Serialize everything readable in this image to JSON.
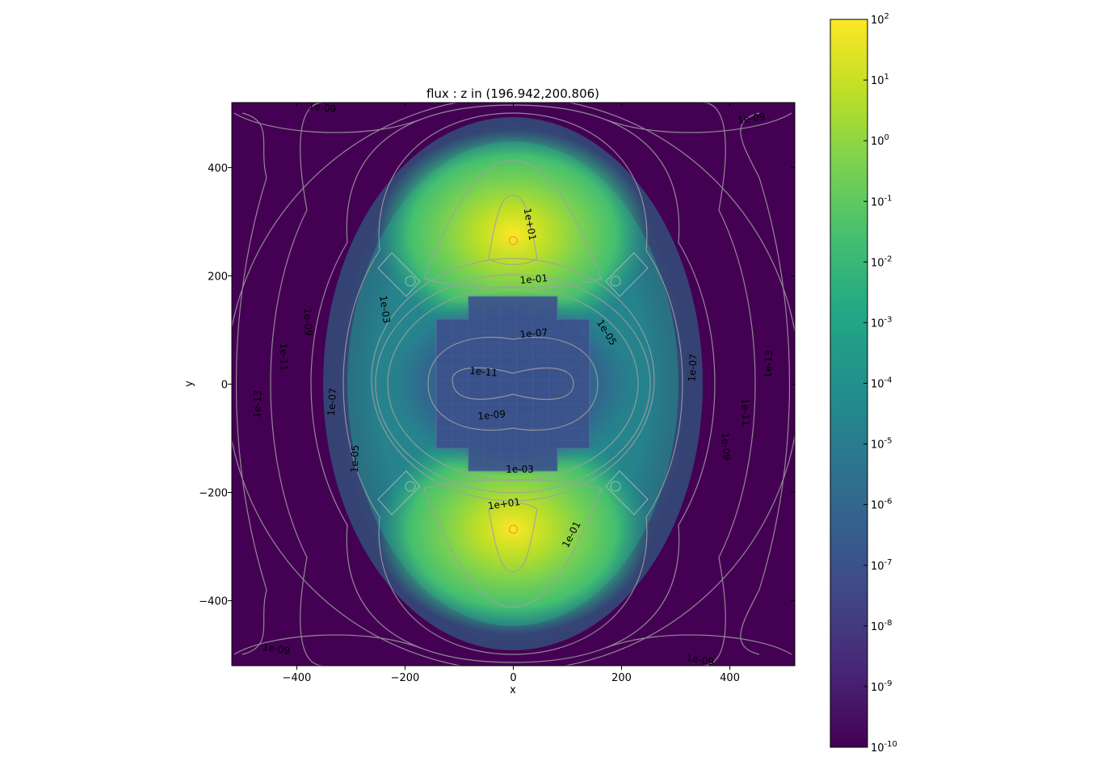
{
  "chart_data": {
    "type": "heatmap",
    "title": "flux : z in (196.942,200.806)",
    "xlabel": "x",
    "ylabel": "y",
    "xlim": [
      -520,
      520
    ],
    "ylim": [
      -520,
      520
    ],
    "x_ticks": [
      -400,
      -200,
      0,
      200,
      400
    ],
    "x_tick_labels": [
      "−400",
      "−200",
      "0",
      "200",
      "400"
    ],
    "y_ticks": [
      400,
      200,
      0,
      -200,
      -400
    ],
    "y_tick_labels": [
      "400",
      "200",
      "0",
      "−200",
      "−400"
    ],
    "colormap": "viridis",
    "color_scale": "log",
    "colorbar": {
      "min": 1e-10,
      "max": 100,
      "exponents": [
        2,
        1,
        0,
        -1,
        -2,
        -3,
        -4,
        -5,
        -6,
        -7,
        -8,
        -9,
        -10
      ],
      "base": "10"
    },
    "sources": [
      {
        "x": 0,
        "y": 265
      },
      {
        "x": 0,
        "y": -268
      }
    ],
    "contour_labels": [
      {
        "text": "1e+01",
        "x": 30,
        "y": 295,
        "rotate": 80
      },
      {
        "text": "1e-01",
        "x": 38,
        "y": 193,
        "rotate": -5
      },
      {
        "text": "1e-03",
        "x": -238,
        "y": 138,
        "rotate": 82
      },
      {
        "text": "1e-07",
        "x": 38,
        "y": 93,
        "rotate": -5
      },
      {
        "text": "1e-05",
        "x": 172,
        "y": 95,
        "rotate": 58
      },
      {
        "text": "1e-09",
        "x": -380,
        "y": 115,
        "rotate": 88
      },
      {
        "text": "1e-11",
        "x": -425,
        "y": 50,
        "rotate": 88
      },
      {
        "text": "1e-13",
        "x": -472,
        "y": -37,
        "rotate": -88
      },
      {
        "text": "1e-07",
        "x": -334,
        "y": -33,
        "rotate": -86
      },
      {
        "text": "1e-05",
        "x": -292,
        "y": -138,
        "rotate": -88
      },
      {
        "text": "1e-11",
        "x": -55,
        "y": 22,
        "rotate": 5
      },
      {
        "text": "1e-09",
        "x": -40,
        "y": -58,
        "rotate": -5
      },
      {
        "text": "1e-03",
        "x": 12,
        "y": -158,
        "rotate": 0
      },
      {
        "text": "1e+01",
        "x": -17,
        "y": -222,
        "rotate": -8
      },
      {
        "text": "1e-01",
        "x": 108,
        "y": -278,
        "rotate": -62
      },
      {
        "text": "1e-07",
        "x": 332,
        "y": 30,
        "rotate": -86
      },
      {
        "text": "1e-13",
        "x": 472,
        "y": 37,
        "rotate": -88
      },
      {
        "text": "1e-11",
        "x": 428,
        "y": -52,
        "rotate": 88
      },
      {
        "text": "1e-09",
        "x": 392,
        "y": -115,
        "rotate": 86
      },
      {
        "text": "1e-09",
        "x": 440,
        "y": 490,
        "rotate": -8
      },
      {
        "text": "1e-09",
        "x": -353,
        "y": 510,
        "rotate": 8
      },
      {
        "text": "1e-09",
        "x": -438,
        "y": -490,
        "rotate": 8
      },
      {
        "text": "1e-09",
        "x": 345,
        "y": -510,
        "rotate": 10
      }
    ],
    "grid": false
  }
}
